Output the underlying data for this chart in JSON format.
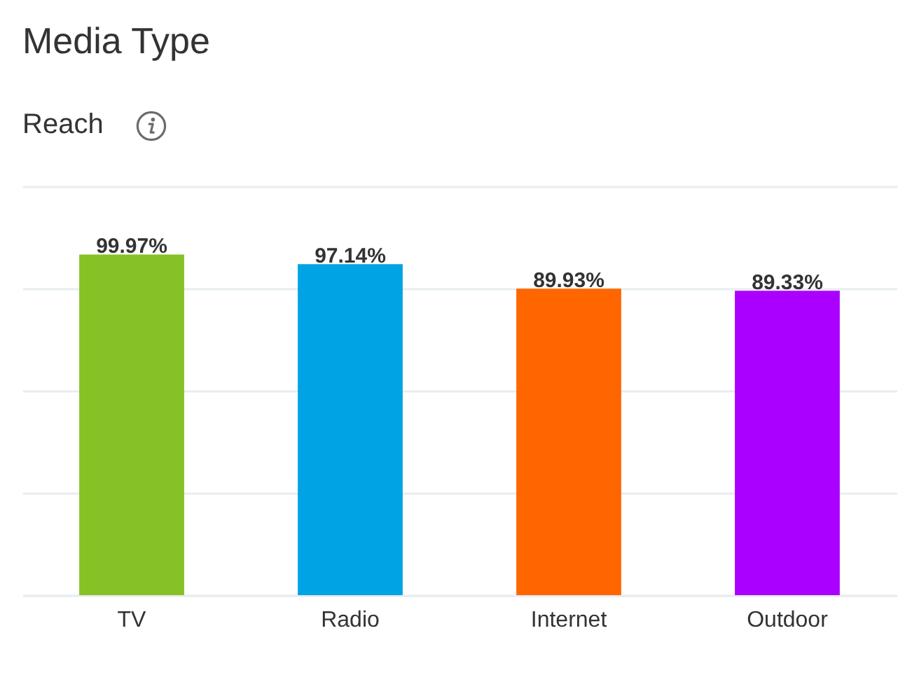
{
  "chart_data": {
    "type": "bar",
    "title": "Media Type",
    "subtitle": "Reach",
    "categories": [
      "TV",
      "Radio",
      "Internet",
      "Outdoor"
    ],
    "values": [
      99.97,
      97.14,
      89.93,
      89.33
    ],
    "value_labels": [
      "99.97%",
      "97.14%",
      "89.93%",
      "89.33%"
    ],
    "colors": [
      "#86c126",
      "#00a3e4",
      "#ff6600",
      "#aa00ff"
    ],
    "ylim": [
      0,
      120
    ],
    "yticks": [
      {
        "value": 0,
        "label": null
      },
      {
        "value": 30,
        "label": null
      },
      {
        "value": 60,
        "label": null
      },
      {
        "value": 90,
        "label": null
      },
      {
        "value": 120,
        "label": null
      }
    ],
    "grid": "y",
    "tick_labels": "x"
  }
}
